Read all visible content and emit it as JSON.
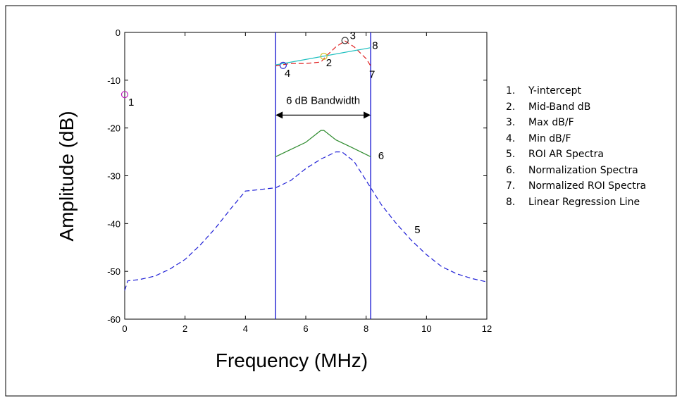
{
  "chart_data": {
    "type": "line",
    "xlabel": "Frequency (MHz)",
    "ylabel": "Amplitude (dB)",
    "xlim": [
      0,
      12
    ],
    "ylim": [
      -60,
      0
    ],
    "xticks": [
      0,
      2,
      4,
      6,
      8,
      10,
      12
    ],
    "yticks": [
      0,
      -10,
      -20,
      -30,
      -40,
      -50,
      -60
    ],
    "grid": false,
    "bandwidth": {
      "label": "6 dB Bandwidth",
      "x_low": 5.0,
      "x_high": 8.15,
      "arrow_y": -17.3
    },
    "series": [
      {
        "name": "ROI AR Spectra",
        "id": "5",
        "color": "#1f1fd6",
        "style": "dashed",
        "x": [
          0,
          0.1,
          0.5,
          1,
          1.5,
          2,
          2.5,
          3,
          3.5,
          4,
          4.3,
          5,
          5.5,
          6,
          6.5,
          7,
          7.2,
          7.6,
          8,
          8.5,
          9,
          9.5,
          10,
          10.5,
          11,
          11.5,
          12
        ],
        "y": [
          -54,
          -52,
          -51.7,
          -51,
          -49.5,
          -47.5,
          -44.5,
          -41,
          -37,
          -33.2,
          -33,
          -32.5,
          -31,
          -28.5,
          -26.5,
          -25,
          -25,
          -27,
          -31,
          -36,
          -40,
          -43.5,
          -46.5,
          -49,
          -50.5,
          -51.5,
          -52.2
        ]
      },
      {
        "name": "Normalization Spectra",
        "id": "6",
        "color": "#2e8b2e",
        "style": "solid",
        "x": [
          5,
          5.5,
          6,
          6.5,
          6.6,
          7,
          7.5,
          8.15
        ],
        "y": [
          -26,
          -24.5,
          -23,
          -20.5,
          -20.5,
          -22.5,
          -24,
          -26
        ]
      },
      {
        "name": "Normalized ROI Spectra",
        "id": "7",
        "color": "#e02020",
        "style": "dashed",
        "x": [
          5,
          5.5,
          6,
          6.5,
          6.7,
          7,
          7.3,
          7.6,
          8,
          8.15
        ],
        "y": [
          -7,
          -6.5,
          -6.5,
          -6.2,
          -4.8,
          -3,
          -1.8,
          -3,
          -5.5,
          -7
        ]
      },
      {
        "name": "Linear Regression Line",
        "id": "8",
        "color": "#20c0c0",
        "style": "solid",
        "x": [
          5,
          8.15
        ],
        "y": [
          -6.8,
          -3.2
        ]
      }
    ],
    "markers": [
      {
        "id": "1",
        "name": "Y-intercept",
        "x": 0,
        "y": -13,
        "color": "#c020c0"
      },
      {
        "id": "2",
        "name": "Mid-Band dB",
        "x": 6.6,
        "y": -5,
        "color": "#d0c020"
      },
      {
        "id": "3",
        "name": "Max dB/F",
        "x": 7.3,
        "y": -1.7,
        "color": "#333333"
      },
      {
        "id": "4",
        "name": "Min dB/F",
        "x": 5.25,
        "y": -6.9,
        "color": "#2020d0"
      }
    ],
    "curve_labels": [
      {
        "text": "5",
        "x": 9.6,
        "y": -42
      },
      {
        "text": "6",
        "x": 8.4,
        "y": -26.5
      },
      {
        "text": "7",
        "x": 8.1,
        "y": -9.5
      },
      {
        "text": "8",
        "x": 8.2,
        "y": -3.5
      }
    ],
    "legend": [
      {
        "num": "1.",
        "text": "Y-intercept"
      },
      {
        "num": "2.",
        "text": "Mid-Band dB"
      },
      {
        "num": "3.",
        "text": "Max dB/F"
      },
      {
        "num": "4.",
        "text": "Min dB/F"
      },
      {
        "num": "5.",
        "text": "ROI AR Spectra"
      },
      {
        "num": "6.",
        "text": "Normalization Spectra"
      },
      {
        "num": "7.",
        "text": "Normalized ROI Spectra"
      },
      {
        "num": "8.",
        "text": "Linear Regression Line"
      }
    ],
    "legend_placement": "right"
  }
}
